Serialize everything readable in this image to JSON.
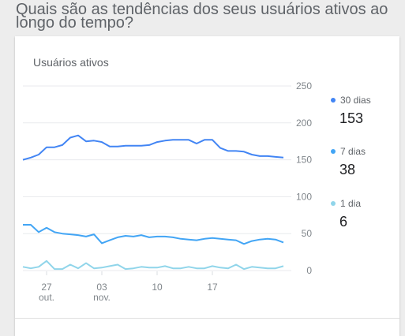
{
  "heading": "Quais são as tendências dos seus usuários ativos ao longo do tempo?",
  "card_title": "Usuários ativos",
  "colors": {
    "series_30": "#4285f4",
    "series_7": "#42a5f5",
    "series_1": "#90d5ea",
    "grid": "#e8eaed"
  },
  "legend": [
    {
      "label": "30 dias",
      "value": "153",
      "color": "#4285f4"
    },
    {
      "label": "7 dias",
      "value": "38",
      "color": "#42a5f5"
    },
    {
      "label": "1 dia",
      "value": "6",
      "color": "#90d5ea"
    }
  ],
  "chart_data": {
    "type": "line",
    "title": "Usuários ativos",
    "xlabel": "",
    "ylabel": "",
    "y_ticks": [
      0,
      50,
      100,
      150,
      200,
      250
    ],
    "ylim": [
      0,
      250
    ],
    "grid": true,
    "legend_position": "right",
    "x_ticks": [
      {
        "day": 27,
        "label": "27",
        "sublabel": "out."
      },
      {
        "day": 34,
        "label": "03",
        "sublabel": "nov."
      },
      {
        "day": 41,
        "label": "10",
        "sublabel": ""
      },
      {
        "day": 48,
        "label": "17",
        "sublabel": ""
      }
    ],
    "x_days": [
      24,
      25,
      26,
      27,
      28,
      29,
      30,
      31,
      32,
      33,
      34,
      35,
      36,
      37,
      38,
      39,
      40,
      41,
      42,
      43,
      44,
      45,
      46,
      47,
      48,
      49,
      50,
      51,
      52,
      53,
      54,
      55,
      56,
      57
    ],
    "series": [
      {
        "name": "30 dias",
        "values": [
          150,
          153,
          157,
          167,
          167,
          170,
          180,
          183,
          175,
          176,
          174,
          168,
          168,
          169,
          169,
          169,
          170,
          174,
          176,
          177,
          177,
          177,
          172,
          177,
          177,
          166,
          162,
          162,
          161,
          157,
          155,
          155,
          154,
          153
        ]
      },
      {
        "name": "7 dias",
        "values": [
          62,
          62,
          52,
          58,
          52,
          50,
          49,
          48,
          46,
          49,
          37,
          41,
          45,
          47,
          46,
          48,
          45,
          46,
          46,
          45,
          43,
          42,
          41,
          43,
          44,
          43,
          42,
          41,
          36,
          40,
          42,
          43,
          42,
          38
        ]
      },
      {
        "name": "1 dia",
        "values": [
          5,
          3,
          5,
          13,
          2,
          2,
          8,
          3,
          10,
          3,
          4,
          6,
          8,
          2,
          3,
          5,
          4,
          4,
          6,
          3,
          3,
          5,
          3,
          3,
          6,
          4,
          3,
          8,
          2,
          5,
          4,
          3,
          3,
          6
        ]
      }
    ]
  }
}
